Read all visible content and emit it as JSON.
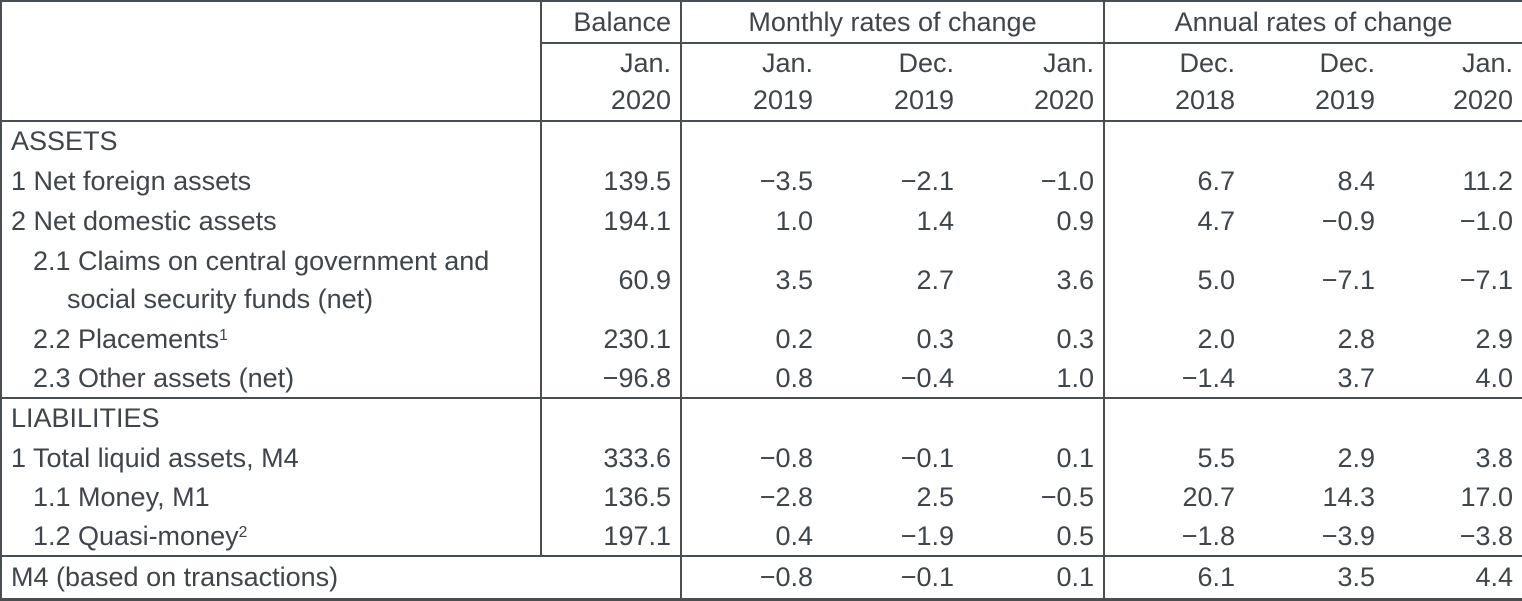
{
  "colors": {
    "text": "#3f454a",
    "border": "#494e53",
    "background": "#ffffff"
  },
  "table": {
    "header": {
      "balance": {
        "title": "Balance",
        "line1": "Jan.",
        "line2": "2020"
      },
      "monthly": {
        "title": "Monthly rates of change",
        "periods": [
          {
            "line1": "Jan.",
            "line2": "2019"
          },
          {
            "line1": "Dec.",
            "line2": "2019"
          },
          {
            "line1": "Jan.",
            "line2": "2020"
          }
        ]
      },
      "annual": {
        "title": "Annual rates of change",
        "periods": [
          {
            "line1": "Dec.",
            "line2": "2018"
          },
          {
            "line1": "Dec.",
            "line2": "2019"
          },
          {
            "line1": "Jan.",
            "line2": "2020"
          }
        ]
      }
    },
    "rows": [
      {
        "type": "section",
        "label": "ASSETS"
      },
      {
        "type": "data",
        "label": "1 Net foreign assets",
        "balance": "139.5",
        "monthly": [
          "−3.5",
          "−2.1",
          "−1.0"
        ],
        "annual": [
          "6.7",
          "8.4",
          "11.2"
        ]
      },
      {
        "type": "data",
        "label": "2 Net domestic assets",
        "balance": "194.1",
        "monthly": [
          "1.0",
          "1.4",
          "0.9"
        ],
        "annual": [
          "4.7",
          "−0.9",
          "−1.0"
        ]
      },
      {
        "type": "data-two-line",
        "label_line1": "2.1 Claims on central government and",
        "label_line2": "social security funds (net)",
        "balance": "60.9",
        "monthly": [
          "3.5",
          "2.7",
          "3.6"
        ],
        "annual": [
          "5.0",
          "−7.1",
          "−7.1"
        ]
      },
      {
        "type": "data",
        "label": "2.2 Placements",
        "sup": "1",
        "balance": "230.1",
        "monthly": [
          "0.2",
          "0.3",
          "0.3"
        ],
        "annual": [
          "2.0",
          "2.8",
          "2.9"
        ]
      },
      {
        "type": "data",
        "label": "2.3 Other assets (net)",
        "balance": "−96.8",
        "monthly": [
          "0.8",
          "−0.4",
          "1.0"
        ],
        "annual": [
          "−1.4",
          "3.7",
          "4.0"
        ]
      },
      {
        "type": "section",
        "label": "LIABILITIES"
      },
      {
        "type": "data",
        "label": "1 Total liquid assets, M4",
        "balance": "333.6",
        "monthly": [
          "−0.8",
          "−0.1",
          "0.1"
        ],
        "annual": [
          "5.5",
          "2.9",
          "3.8"
        ]
      },
      {
        "type": "data",
        "label": "1.1 Money, M1",
        "balance": "136.5",
        "monthly": [
          "−2.8",
          "2.5",
          "−0.5"
        ],
        "annual": [
          "20.7",
          "14.3",
          "17.0"
        ]
      },
      {
        "type": "data",
        "label": "1.2 Quasi-money",
        "sup": "2",
        "balance": "197.1",
        "monthly": [
          "0.4",
          "−1.9",
          "0.5"
        ],
        "annual": [
          "−1.8",
          "−3.9",
          "−3.8"
        ]
      },
      {
        "type": "footer",
        "label": "M4 (based on transactions)",
        "balance": "",
        "monthly": [
          "−0.8",
          "−0.1",
          "0.1"
        ],
        "annual": [
          "6.1",
          "3.5",
          "4.4"
        ]
      }
    ]
  }
}
